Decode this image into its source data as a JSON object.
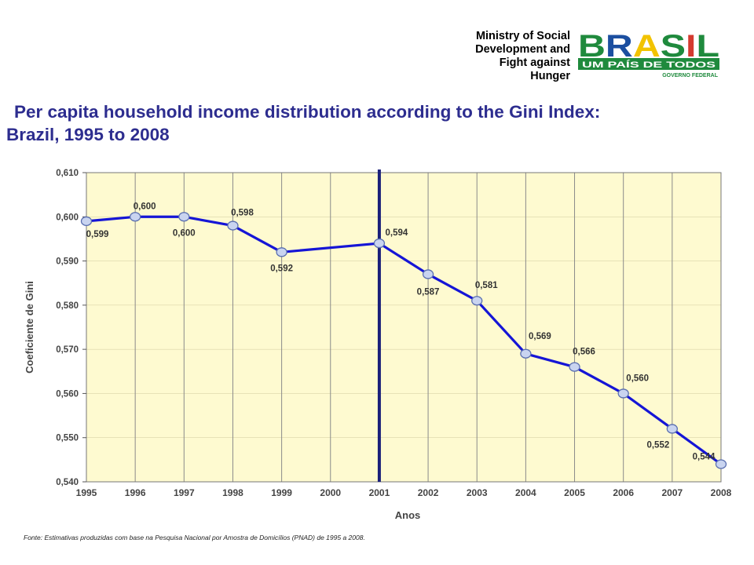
{
  "header": {
    "ministry_lines": [
      "Ministry of Social",
      "Development and",
      "Fight against",
      "Hunger"
    ],
    "logo": {
      "word": "BRASIL",
      "tagline": "UM PAÍS DE TODOS",
      "sub": "GOVERNO FEDERAL",
      "colors": {
        "green": "#1f8a3d",
        "yellow": "#f2c300",
        "blue": "#1c4fa0",
        "red": "#d43a2f"
      }
    }
  },
  "title": {
    "line1": "Per capita household income distribution  according to the Gini Index:",
    "line2": "Brazil, 1995 to 2008"
  },
  "chart_data": {
    "type": "line",
    "x": [
      "1995",
      "1996",
      "1997",
      "1998",
      "1999",
      "2000",
      "2001",
      "2002",
      "2003",
      "2004",
      "2005",
      "2006",
      "2007",
      "2008"
    ],
    "series": [
      {
        "values": [
          0.599,
          0.6,
          0.6,
          0.598,
          0.592,
          null,
          0.594,
          0.587,
          0.581,
          0.569,
          0.566,
          0.56,
          0.552,
          0.544
        ],
        "labels": [
          "0,599",
          "0,600",
          "0,600",
          "0,598",
          "0,592",
          "",
          "0,594",
          "0,587",
          "0,581",
          "0,569",
          "0,566",
          "0,560",
          "0,552",
          "0,544"
        ],
        "color": "#1515d6"
      }
    ],
    "ylim": [
      0.54,
      0.61
    ],
    "yticks": [
      "0,540",
      "0,550",
      "0,560",
      "0,570",
      "0,580",
      "0,590",
      "0,600",
      "0,610"
    ],
    "xlabel": "Anos",
    "ylabel": "Coeficiente de Gini",
    "vline_at": "2001",
    "grid": "vertical",
    "plot_bg": "#fefad0",
    "source": "Fonte: Estimativas produzidas com base na Pesquisa Nacional por Amostra de Domicílios (PNAD) de 1995 a 2008."
  }
}
